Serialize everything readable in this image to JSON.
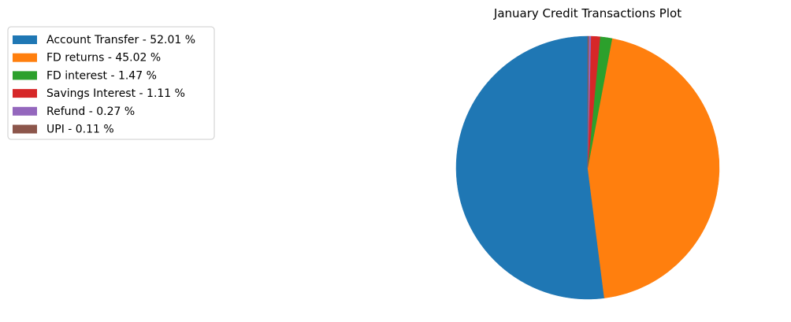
{
  "chart_data": {
    "type": "pie",
    "title": "January Credit Transactions Plot",
    "start_angle_deg": 90,
    "direction": "counterclockwise",
    "legend_position": "top-left",
    "slices": [
      {
        "label": "Account Transfer",
        "value": 52.01,
        "color": "#1f77b4",
        "legend_label": "Account Transfer - 52.01 %"
      },
      {
        "label": "FD returns",
        "value": 45.02,
        "color": "#ff7f0e",
        "legend_label": "FD returns - 45.02 %"
      },
      {
        "label": "FD interest",
        "value": 1.47,
        "color": "#2ca02c",
        "legend_label": "FD interest - 1.47 %"
      },
      {
        "label": "Savings Interest",
        "value": 1.11,
        "color": "#d62728",
        "legend_label": "Savings Interest - 1.11 %"
      },
      {
        "label": "Refund",
        "value": 0.27,
        "color": "#9467bd",
        "legend_label": "Refund - 0.27 %"
      },
      {
        "label": "UPI",
        "value": 0.11,
        "color": "#8c564b",
        "legend_label": "UPI - 0.11 %"
      }
    ]
  }
}
